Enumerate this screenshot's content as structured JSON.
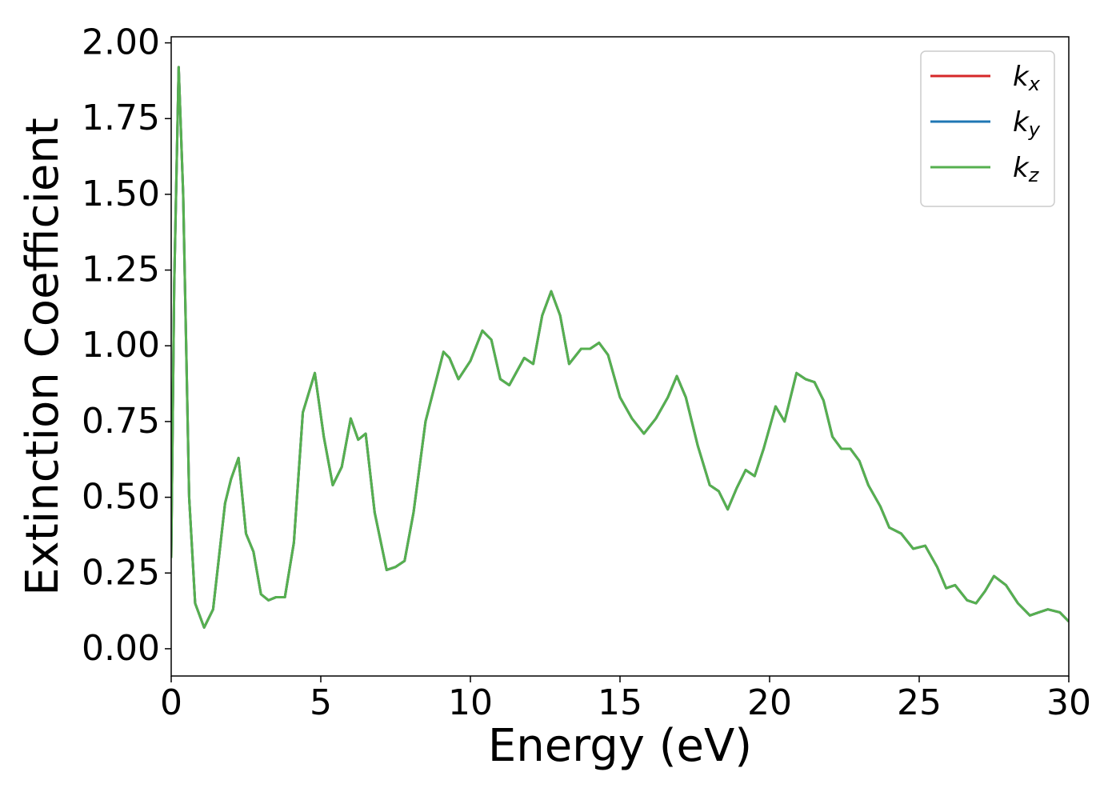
{
  "chart_data": {
    "type": "line",
    "xlabel": "Energy (eV)",
    "ylabel": "Extinction Coefficient",
    "x": [
      0,
      0.1,
      0.25,
      0.4,
      0.6,
      0.8,
      1.1,
      1.4,
      1.8,
      2.0,
      2.25,
      2.5,
      2.75,
      3.0,
      3.25,
      3.5,
      3.8,
      4.1,
      4.4,
      4.8,
      5.1,
      5.4,
      5.7,
      6.0,
      6.25,
      6.5,
      6.8,
      7.2,
      7.5,
      7.8,
      8.1,
      8.5,
      9.1,
      9.3,
      9.6,
      10.0,
      10.4,
      10.7,
      11.0,
      11.3,
      11.8,
      12.1,
      12.4,
      12.7,
      13.0,
      13.3,
      13.7,
      14.0,
      14.3,
      14.6,
      15.0,
      15.4,
      15.8,
      16.2,
      16.6,
      16.9,
      17.2,
      17.6,
      18.0,
      18.3,
      18.6,
      18.9,
      19.2,
      19.5,
      19.8,
      20.2,
      20.5,
      20.9,
      21.2,
      21.5,
      21.8,
      22.1,
      22.4,
      22.7,
      23.0,
      23.3,
      23.7,
      24.0,
      24.4,
      24.8,
      25.2,
      25.6,
      25.9,
      26.2,
      26.6,
      26.9,
      27.2,
      27.5,
      27.9,
      28.3,
      28.7,
      29.0,
      29.3,
      29.7,
      30
    ],
    "series": [
      {
        "name": "kx",
        "color": "#d62728",
        "values": [
          0.3,
          1.2,
          1.92,
          1.5,
          0.5,
          0.15,
          0.07,
          0.13,
          0.48,
          0.56,
          0.63,
          0.38,
          0.32,
          0.18,
          0.16,
          0.17,
          0.17,
          0.35,
          0.78,
          0.91,
          0.7,
          0.54,
          0.6,
          0.76,
          0.69,
          0.71,
          0.45,
          0.26,
          0.27,
          0.29,
          0.45,
          0.75,
          0.98,
          0.96,
          0.89,
          0.95,
          1.05,
          1.02,
          0.89,
          0.87,
          0.96,
          0.94,
          1.1,
          1.18,
          1.1,
          0.94,
          0.99,
          0.99,
          1.01,
          0.97,
          0.83,
          0.76,
          0.71,
          0.76,
          0.83,
          0.9,
          0.83,
          0.67,
          0.54,
          0.52,
          0.46,
          0.53,
          0.59,
          0.57,
          0.66,
          0.8,
          0.75,
          0.91,
          0.89,
          0.88,
          0.82,
          0.7,
          0.66,
          0.66,
          0.62,
          0.54,
          0.47,
          0.4,
          0.38,
          0.33,
          0.34,
          0.27,
          0.2,
          0.21,
          0.16,
          0.15,
          0.19,
          0.24,
          0.21,
          0.15,
          0.11,
          0.12,
          0.13,
          0.12,
          0.09
        ]
      },
      {
        "name": "ky",
        "color": "#1f77b4",
        "values": [
          0.3,
          1.2,
          1.92,
          1.5,
          0.5,
          0.15,
          0.07,
          0.13,
          0.48,
          0.56,
          0.63,
          0.38,
          0.32,
          0.18,
          0.16,
          0.17,
          0.17,
          0.35,
          0.78,
          0.91,
          0.7,
          0.54,
          0.6,
          0.76,
          0.69,
          0.71,
          0.45,
          0.26,
          0.27,
          0.29,
          0.45,
          0.75,
          0.98,
          0.96,
          0.89,
          0.95,
          1.05,
          1.02,
          0.89,
          0.87,
          0.96,
          0.94,
          1.1,
          1.18,
          1.1,
          0.94,
          0.99,
          0.99,
          1.01,
          0.97,
          0.83,
          0.76,
          0.71,
          0.76,
          0.83,
          0.9,
          0.83,
          0.67,
          0.54,
          0.52,
          0.46,
          0.53,
          0.59,
          0.57,
          0.66,
          0.8,
          0.75,
          0.91,
          0.89,
          0.88,
          0.82,
          0.7,
          0.66,
          0.66,
          0.62,
          0.54,
          0.47,
          0.4,
          0.38,
          0.33,
          0.34,
          0.27,
          0.2,
          0.21,
          0.16,
          0.15,
          0.19,
          0.24,
          0.21,
          0.15,
          0.11,
          0.12,
          0.13,
          0.12,
          0.09
        ]
      },
      {
        "name": "kz",
        "color": "#56b04f",
        "values": [
          0.3,
          1.2,
          1.92,
          1.5,
          0.5,
          0.15,
          0.07,
          0.13,
          0.48,
          0.56,
          0.63,
          0.38,
          0.32,
          0.18,
          0.16,
          0.17,
          0.17,
          0.35,
          0.78,
          0.91,
          0.7,
          0.54,
          0.6,
          0.76,
          0.69,
          0.71,
          0.45,
          0.26,
          0.27,
          0.29,
          0.45,
          0.75,
          0.98,
          0.96,
          0.89,
          0.95,
          1.05,
          1.02,
          0.89,
          0.87,
          0.96,
          0.94,
          1.1,
          1.18,
          1.1,
          0.94,
          0.99,
          0.99,
          1.01,
          0.97,
          0.83,
          0.76,
          0.71,
          0.76,
          0.83,
          0.9,
          0.83,
          0.67,
          0.54,
          0.52,
          0.46,
          0.53,
          0.59,
          0.57,
          0.66,
          0.8,
          0.75,
          0.91,
          0.89,
          0.88,
          0.82,
          0.7,
          0.66,
          0.66,
          0.62,
          0.54,
          0.47,
          0.4,
          0.38,
          0.33,
          0.34,
          0.27,
          0.2,
          0.21,
          0.16,
          0.15,
          0.19,
          0.24,
          0.21,
          0.15,
          0.11,
          0.12,
          0.13,
          0.12,
          0.09
        ]
      }
    ],
    "xlim": [
      0,
      30
    ],
    "xticks": [
      0,
      5,
      10,
      15,
      20,
      25,
      30
    ],
    "ylim": [
      -0.09,
      2.02
    ],
    "yticks": [
      {
        "value": 0,
        "label": "0.00"
      },
      {
        "value": 0.25,
        "label": "0.25"
      },
      {
        "value": 0.5,
        "label": "0.50"
      },
      {
        "value": 0.75,
        "label": "0.75"
      },
      {
        "value": 1,
        "label": "1.00"
      },
      {
        "value": 1.25,
        "label": "1.25"
      },
      {
        "value": 1.5,
        "label": "1.50"
      },
      {
        "value": 1.75,
        "label": "1.75"
      },
      {
        "value": 2,
        "label": "2.00"
      }
    ],
    "grid": false,
    "legend": "upper right"
  }
}
